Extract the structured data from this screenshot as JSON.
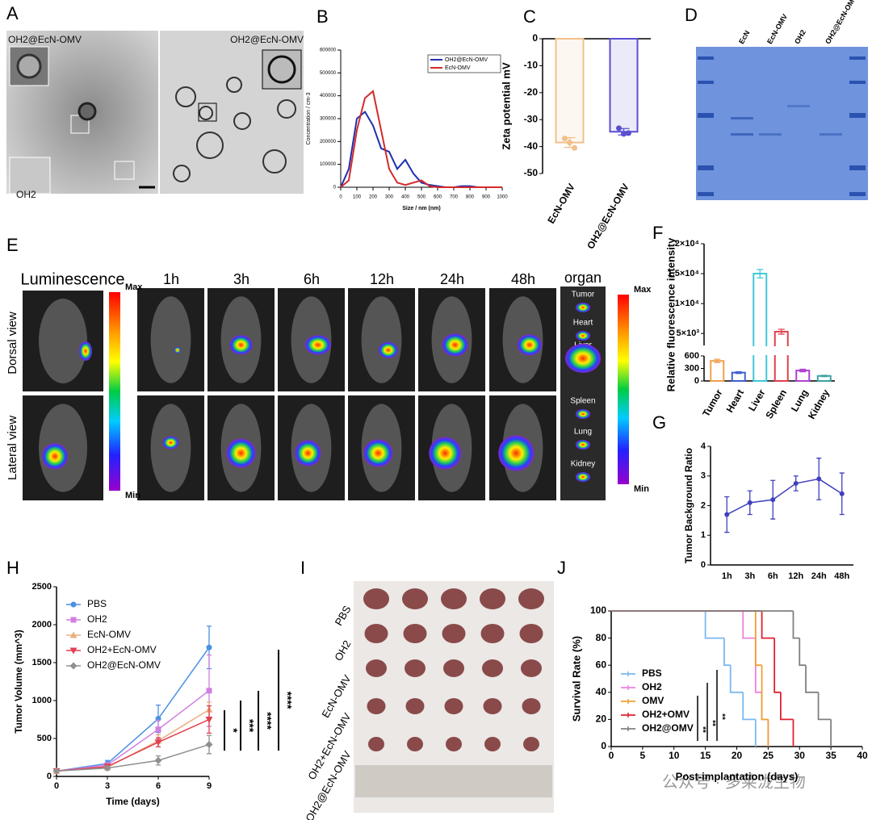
{
  "figure": {
    "panel_labels": [
      "A",
      "D",
      "E",
      "I"
    ],
    "a": {
      "labels": [
        "OH2@EcN-OMV",
        "OH2@EcN-OMV",
        "OH2"
      ]
    },
    "d": {
      "lanes": [
        "EcN",
        "EcN-OMV",
        "OH2",
        "OH2@EcN-OMV"
      ]
    },
    "e": {
      "header": "Luminescence",
      "times": [
        "1h",
        "3h",
        "6h",
        "12h",
        "24h",
        "48h"
      ],
      "organ": "organ",
      "views": [
        "Dorsal view",
        "Lateral view"
      ],
      "scale": [
        "Max",
        "Min"
      ],
      "organs": [
        "Tumor",
        "Heart",
        "Liver",
        "Spleen",
        "Lung",
        "Kidney"
      ]
    },
    "i": {
      "groups": [
        "PBS",
        "OH2",
        "EcN-OMV",
        "OH2+EcN-OMV",
        "OH2@EcN-OMV"
      ]
    },
    "watermark": "公众号 · 多莱泷生物"
  },
  "chart_data": [
    {
      "panel": "B",
      "type": "line",
      "xlabel": "Size / nm (nm)",
      "ylabel": "Concentration / cm-3",
      "x": [
        0,
        50,
        100,
        150,
        200,
        250,
        300,
        350,
        400,
        450,
        500,
        550,
        600,
        650,
        700,
        750,
        800,
        850,
        900,
        950,
        1000
      ],
      "series": [
        {
          "name": "OH2@EcN-OMV",
          "color": "#1f2fb0",
          "values": [
            0,
            80000,
            300000,
            330000,
            270000,
            170000,
            155000,
            80000,
            120000,
            60000,
            20000,
            10000,
            5000,
            0,
            0,
            5000,
            5000,
            0,
            0,
            0,
            0
          ]
        },
        {
          "name": "EcN-OMV",
          "color": "#d42a2a",
          "values": [
            0,
            30000,
            250000,
            390000,
            420000,
            250000,
            80000,
            20000,
            10000,
            20000,
            30000,
            5000,
            0,
            0,
            0,
            0,
            0,
            0,
            0,
            0,
            0
          ]
        }
      ],
      "xlim": [
        0,
        1000
      ],
      "xticks": [
        0,
        100,
        200,
        300,
        400,
        500,
        600,
        700,
        800,
        900,
        1000
      ],
      "ylim": [
        0,
        600000
      ],
      "yticks": [
        0,
        100000,
        200000,
        300000,
        400000,
        500000,
        600000
      ],
      "legend": "upper right"
    },
    {
      "panel": "C",
      "type": "bar",
      "ylabel": "Zeta potential mV",
      "categories": [
        "EcN-OMV",
        "OH2@EcN-OMV"
      ],
      "values": [
        -38.5,
        -34.5
      ],
      "errors": [
        1.8,
        1.2
      ],
      "points": [
        [
          -37,
          -38.5,
          -40.5
        ],
        [
          -33.2,
          -35.3,
          -35
        ]
      ],
      "colors": [
        "#f2c08a",
        "#5b4fd0"
      ],
      "ylim": [
        -50,
        0
      ],
      "yticks": [
        0,
        -10,
        -20,
        -30,
        -40,
        -50
      ]
    },
    {
      "panel": "F",
      "type": "bar",
      "ylabel": "Relative fluorescence intensity",
      "categories": [
        "Tumor",
        "Heart",
        "Liver",
        "Spleen",
        "Lung",
        "Kidney"
      ],
      "values": [
        480,
        200,
        15000,
        5300,
        250,
        120
      ],
      "errors": [
        40,
        20,
        700,
        400,
        30,
        15
      ],
      "colors": [
        "#f0a050",
        "#4060d0",
        "#40c8d8",
        "#e04050",
        "#b040d0",
        "#40a0a0"
      ],
      "ylim_segments": [
        [
          0,
          600
        ],
        [
          3000,
          20000
        ]
      ],
      "yticks": [
        0,
        300,
        600,
        {
          "value": 5000,
          "label": "5×10³"
        },
        {
          "value": 10000,
          "label": "1×10⁴"
        },
        {
          "value": 15000,
          "label": "1.5×10⁴"
        },
        {
          "value": 20000,
          "label": "2×10⁴"
        }
      ]
    },
    {
      "panel": "G",
      "type": "line",
      "ylabel": "Tumor Background Ratio",
      "categories": [
        "1h",
        "3h",
        "6h",
        "12h",
        "24h",
        "48h"
      ],
      "values": [
        1.7,
        2.1,
        2.2,
        2.75,
        2.9,
        2.4
      ],
      "errors": [
        0.6,
        0.4,
        0.65,
        0.25,
        0.7,
        0.7
      ],
      "color": "#3f3fbf",
      "ylim": [
        0,
        4
      ],
      "yticks": [
        0,
        1,
        2,
        3,
        4
      ]
    },
    {
      "panel": "H",
      "type": "line",
      "xlabel": "Time (days)",
      "ylabel": "Tumor Volume (mm^3)",
      "x": [
        0,
        3,
        6,
        9
      ],
      "series": [
        {
          "name": "PBS",
          "color": "#4a90e2",
          "marker": "circle",
          "values": [
            70,
            170,
            760,
            1700
          ],
          "errors": [
            0,
            40,
            180,
            280
          ]
        },
        {
          "name": "OH2",
          "color": "#d080e0",
          "marker": "square",
          "values": [
            70,
            150,
            620,
            1130
          ],
          "errors": [
            0,
            30,
            120,
            470
          ]
        },
        {
          "name": "EcN-OMV",
          "color": "#e8b080",
          "marker": "triangle-up",
          "values": [
            70,
            120,
            470,
            880
          ],
          "errors": [
            0,
            30,
            80,
            100
          ]
        },
        {
          "name": "OH2+EcN-OMV",
          "color": "#e04050",
          "marker": "triangle-down",
          "values": [
            70,
            130,
            450,
            750
          ],
          "errors": [
            0,
            30,
            60,
            180
          ]
        },
        {
          "name": "OH2@EcN-OMV",
          "color": "#909090",
          "marker": "diamond",
          "values": [
            70,
            110,
            210,
            420
          ],
          "errors": [
            0,
            25,
            60,
            120
          ]
        }
      ],
      "xlim": [
        0,
        9
      ],
      "xticks": [
        0,
        3,
        6,
        9
      ],
      "ylim": [
        0,
        2500
      ],
      "yticks": [
        0,
        500,
        1000,
        1500,
        2000,
        2500
      ],
      "legend": "upper left",
      "annotations": [
        "*",
        "***",
        "****",
        "****"
      ]
    },
    {
      "panel": "J",
      "type": "step",
      "xlabel": "Post-implantation (days)",
      "ylabel": "Survival Rate (%)",
      "series": [
        {
          "name": "PBS",
          "color": "#7ab8f0",
          "x": [
            0,
            15,
            18,
            19,
            21,
            23
          ],
          "values": [
            100,
            80,
            60,
            40,
            20,
            0
          ]
        },
        {
          "name": "OH2",
          "color": "#f080e0",
          "x": [
            0,
            21,
            23,
            24,
            25
          ],
          "values": [
            100,
            80,
            40,
            20,
            0
          ]
        },
        {
          "name": "OMV",
          "color": "#f0a030",
          "x": [
            0,
            23,
            24,
            25
          ],
          "values": [
            100,
            60,
            20,
            0
          ]
        },
        {
          "name": "OH2+OMV",
          "color": "#e02030",
          "x": [
            0,
            24,
            26,
            27,
            29
          ],
          "values": [
            100,
            80,
            40,
            20,
            0
          ]
        },
        {
          "name": "OH2@OMV",
          "color": "#808080",
          "x": [
            0,
            29,
            30,
            31,
            33,
            35
          ],
          "values": [
            100,
            80,
            60,
            40,
            20,
            0
          ]
        }
      ],
      "xlim": [
        0,
        40
      ],
      "xticks": [
        0,
        5,
        10,
        15,
        20,
        25,
        30,
        35,
        40
      ],
      "ylim": [
        0,
        100
      ],
      "yticks": [
        0,
        20,
        40,
        60,
        80,
        100
      ],
      "legend": "lower left",
      "annotations": [
        "**",
        "**",
        "**"
      ]
    }
  ]
}
